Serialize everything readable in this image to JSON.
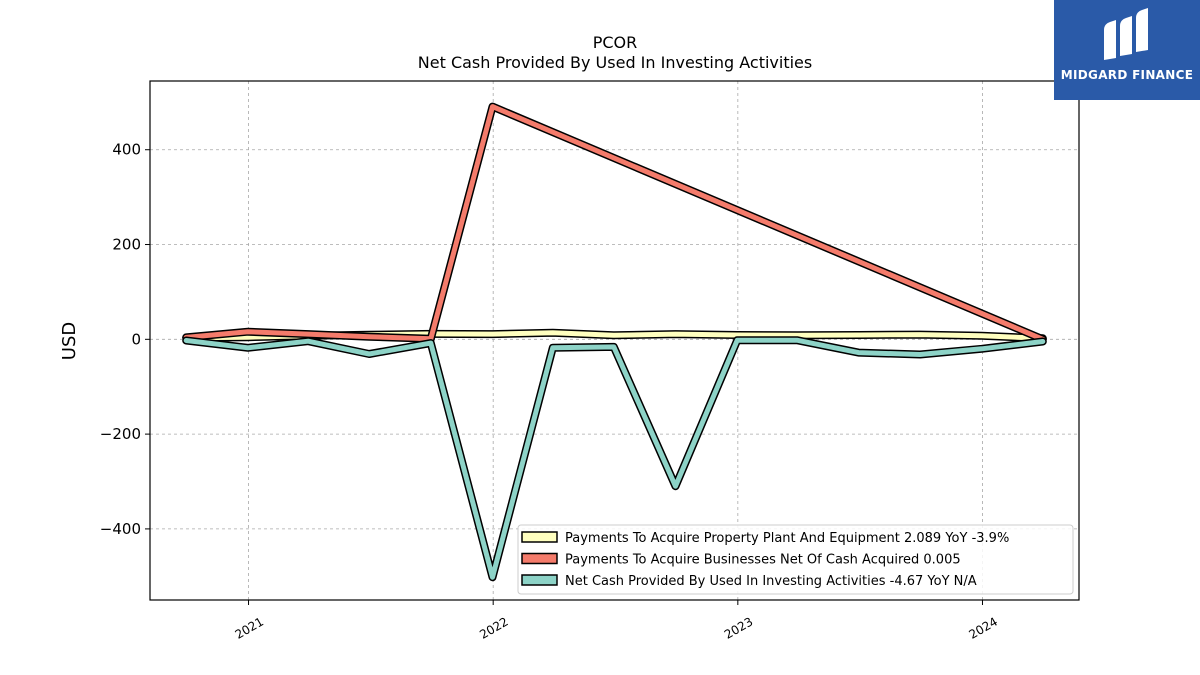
{
  "chart_data": {
    "type": "line",
    "title": "PCOR",
    "subtitle": "Net Cash Provided By Used In Investing Activities",
    "ylabel": "USD",
    "xlabel": "",
    "ylim": [
      -550,
      545
    ],
    "xlim": [
      "2020-08-07",
      "2024-05-24"
    ],
    "yticks": [
      -400,
      -200,
      0,
      200,
      400
    ],
    "yticklabels": [
      "−400",
      "−200",
      "0",
      "200",
      "400"
    ],
    "xticks": [
      "2021-01-01",
      "2022-01-01",
      "2023-01-01",
      "2024-01-01"
    ],
    "xticklabels": [
      "2021",
      "2022",
      "2023",
      "2024"
    ],
    "grid": true,
    "legend_position": "lower-right",
    "series": [
      {
        "name": "Payments To Acquire Property Plant And Equipment  2.089 YoY -3.9%",
        "color": "#ffffbf",
        "points": [
          [
            "2020-09-30",
            3.5
          ],
          [
            "2020-12-31",
            4.5
          ],
          [
            "2021-03-31",
            7.5
          ],
          [
            "2021-06-30",
            9.5
          ],
          [
            "2021-09-30",
            11.5
          ],
          [
            "2021-12-31",
            11.0
          ],
          [
            "2022-03-31",
            14.0
          ],
          [
            "2022-06-30",
            8.5
          ],
          [
            "2022-09-30",
            11.0
          ],
          [
            "2022-12-31",
            9.0
          ],
          [
            "2023-03-31",
            8.5
          ],
          [
            "2023-06-30",
            9.0
          ],
          [
            "2023-09-30",
            10.0
          ],
          [
            "2023-12-31",
            7.5
          ],
          [
            "2024-03-31",
            2.1
          ]
        ]
      },
      {
        "name": "Payments To Acquire Businesses Net Of Cash Acquired  0.005",
        "color": "#f47b6b",
        "points": [
          [
            "2020-09-30",
            4.0
          ],
          [
            "2020-12-31",
            16.0
          ],
          [
            "2021-03-31",
            11.0
          ],
          [
            "2021-06-30",
            5.5
          ],
          [
            "2021-09-30",
            1.0
          ],
          [
            "2021-12-31",
            491.0
          ],
          [
            "2024-03-31",
            0.005
          ]
        ]
      },
      {
        "name": "Net Cash Provided By Used In Investing Activities  -4.67 YoY N/A",
        "color": "#8dd3c7",
        "points": [
          [
            "2020-09-30",
            -2.5
          ],
          [
            "2020-12-31",
            -18.0
          ],
          [
            "2021-03-31",
            -4.0
          ],
          [
            "2021-06-30",
            -31.0
          ],
          [
            "2021-09-30",
            -8.0
          ],
          [
            "2021-12-31",
            -502.0
          ],
          [
            "2022-03-31",
            -18.0
          ],
          [
            "2022-06-30",
            -16.0
          ],
          [
            "2022-09-30",
            -310.0
          ],
          [
            "2022-12-31",
            -2.0
          ],
          [
            "2023-03-31",
            -2.0
          ],
          [
            "2023-06-30",
            -28.0
          ],
          [
            "2023-09-30",
            -32.0
          ],
          [
            "2023-12-31",
            -20.0
          ],
          [
            "2024-03-31",
            -4.67
          ]
        ]
      }
    ]
  },
  "logo": {
    "text": "MIDGARD FINANCE",
    "color": "#2a5aa8"
  }
}
